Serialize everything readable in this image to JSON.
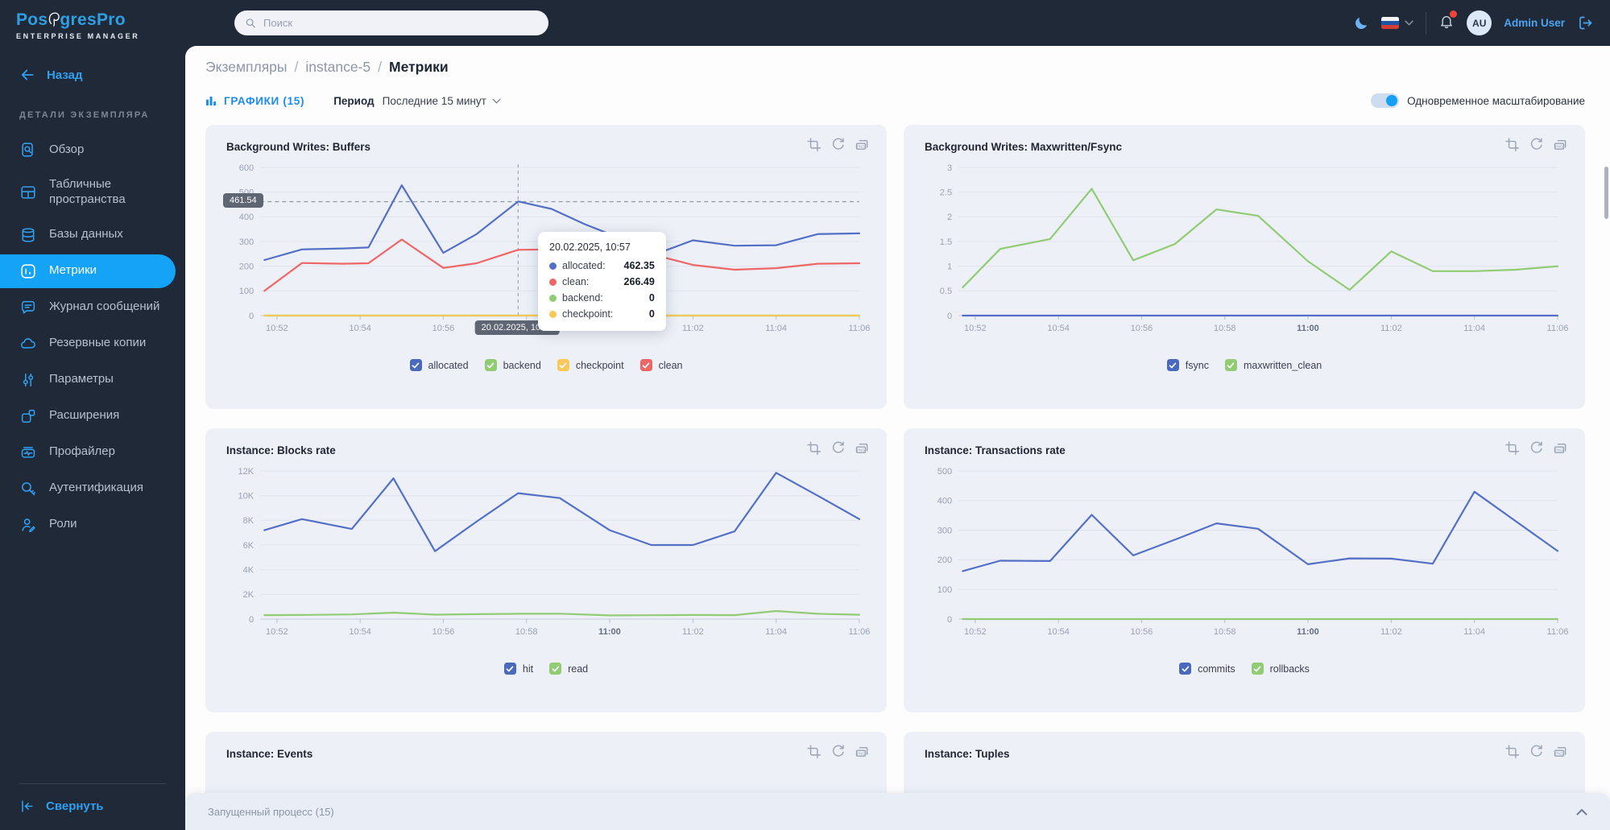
{
  "colors": {
    "sidebar_bg": "#202938",
    "accent_blue": "#14a3f6",
    "link_blue": "#2f9ff0",
    "series_blue": "#5470c6",
    "series_green": "#91cc75",
    "series_yellow": "#fac858",
    "series_red": "#ee6666",
    "checkbox_blue": "#4a69bd",
    "card_bg": "#edf0f7",
    "badge_bg": "#5f6673",
    "notification_red": "#f1443a"
  },
  "header": {
    "logo_text_pre": "Pos",
    "logo_text_post": "gresPro",
    "logo_subtitle": "ENTERPRISE MANAGER",
    "search_placeholder": "Поиск",
    "user_initials": "AU",
    "user_name": "Admin User"
  },
  "sidebar": {
    "back_label": "Назад",
    "section_label": "ДЕТАЛИ ЭКЗЕМПЛЯРА",
    "items": [
      {
        "id": "overview",
        "label": "Обзор",
        "icon": "doc-magnifier-icon",
        "active": false
      },
      {
        "id": "tablespaces",
        "label": "Табличные пространства",
        "icon": "table-grid-icon",
        "active": false
      },
      {
        "id": "databases",
        "label": "Базы данных",
        "icon": "database-icon",
        "active": false
      },
      {
        "id": "metrics",
        "label": "Метрики",
        "icon": "chart-square-icon",
        "active": true
      },
      {
        "id": "message-log",
        "label": "Журнал сообщений",
        "icon": "speech-bubble-icon",
        "active": false
      },
      {
        "id": "backups",
        "label": "Резервные копии",
        "icon": "cloud-icon",
        "active": false
      },
      {
        "id": "parameters",
        "label": "Параметры",
        "icon": "sliders-icon",
        "active": false
      },
      {
        "id": "extensions",
        "label": "Расширения",
        "icon": "puzzle-squares-icon",
        "active": false
      },
      {
        "id": "profiler",
        "label": "Профайлер",
        "icon": "waveform-icon",
        "active": false
      },
      {
        "id": "authentication",
        "label": "Аутентификация",
        "icon": "key-icon",
        "active": false
      },
      {
        "id": "roles",
        "label": "Роли",
        "icon": "user-pen-icon",
        "active": false
      }
    ],
    "collapse_label": "Свернуть"
  },
  "breadcrumb": {
    "parts": [
      "Экземпляры",
      "instance-5",
      "Метрики"
    ],
    "separator": "/"
  },
  "toolbar": {
    "tab_label": "ГРАФИКИ (15)",
    "period_label": "Период",
    "period_value": "Последние 15 минут",
    "sync_toggle_label": "Одновременное масштабирование",
    "sync_enabled": true
  },
  "card_actions": {
    "png_label": "PNG"
  },
  "statusbar": {
    "label": "Запущенный процесс (15)"
  },
  "chart_data": [
    {
      "type": "line",
      "title": "Background Writes: Buffers",
      "x_axis_note": "time of day, 1-minute samples",
      "x": [
        51.7,
        52.6,
        53.6,
        54.2,
        55,
        56,
        56.8,
        57.8,
        58.6,
        59.4,
        60.3,
        61.2,
        62,
        63,
        64,
        65,
        66
      ],
      "xticks": [
        {
          "t": 52,
          "label": "10:52"
        },
        {
          "t": 54,
          "label": "10:54"
        },
        {
          "t": 56,
          "label": "10:56"
        },
        {
          "t": 58,
          "label": "10:58"
        },
        {
          "t": 60,
          "label": "11:00",
          "bold": true
        },
        {
          "t": 62,
          "label": "11:02"
        },
        {
          "t": 64,
          "label": "11:04"
        },
        {
          "t": 66,
          "label": "11:06"
        }
      ],
      "ylim": [
        0,
        600
      ],
      "yticks": [
        {
          "v": 0,
          "label": "0"
        },
        {
          "v": 100,
          "label": "100"
        },
        {
          "v": 200,
          "label": "200"
        },
        {
          "v": 300,
          "label": "300"
        },
        {
          "v": 400,
          "label": "400"
        },
        {
          "v": 500,
          "label": "500"
        },
        {
          "v": 600,
          "label": "600"
        }
      ],
      "series": [
        {
          "name": "backend",
          "color": "#91cc75",
          "values": [
            0,
            0,
            0,
            0,
            0,
            0,
            0,
            0,
            0,
            0,
            0,
            0,
            0,
            0,
            0,
            0,
            0
          ]
        },
        {
          "name": "checkpoint",
          "color": "#fac858",
          "values": [
            0,
            0,
            0,
            0,
            0,
            0,
            0,
            0,
            0,
            0,
            0,
            0,
            0,
            0,
            0,
            0,
            0
          ]
        },
        {
          "name": "clean",
          "color": "#ee6666",
          "values": [
            100,
            213,
            210,
            212,
            308,
            193,
            212,
            266.49,
            268,
            265,
            230,
            240,
            205,
            186,
            192,
            210,
            212
          ]
        },
        {
          "name": "allocated",
          "color": "#5470c6",
          "values": [
            225,
            268,
            272,
            276,
            528,
            254,
            330,
            462.35,
            432,
            370,
            310,
            255,
            305,
            283,
            285,
            330,
            333
          ]
        }
      ],
      "legend": [
        {
          "label": "allocated",
          "color": "#4a69bd"
        },
        {
          "label": "backend",
          "color": "#91cc75"
        },
        {
          "label": "checkpoint",
          "color": "#fac858"
        },
        {
          "label": "clean",
          "color": "#ee6666"
        }
      ],
      "crosshair": {
        "hline_value": 461.54,
        "hline_label": "461.54",
        "vline_t": 57.8,
        "vline_label": "20.02.2025, 10:57"
      },
      "tooltip": {
        "title": "20.02.2025, 10:57",
        "rows": [
          {
            "label": "allocated",
            "value": "462.35",
            "color": "#5470c6"
          },
          {
            "label": "clean",
            "value": "266.49",
            "color": "#ee6666"
          },
          {
            "label": "backend",
            "value": "0",
            "color": "#91cc75"
          },
          {
            "label": "checkpoint",
            "value": "0",
            "color": "#fac858"
          }
        ]
      }
    },
    {
      "type": "line",
      "title": "Background Writes: Maxwritten/Fsync",
      "x": [
        51.7,
        52.6,
        53.8,
        54.8,
        55.8,
        56.8,
        57.8,
        58.8,
        60,
        61,
        62,
        63,
        64,
        65,
        66
      ],
      "xticks": [
        {
          "t": 52,
          "label": "10:52"
        },
        {
          "t": 54,
          "label": "10:54"
        },
        {
          "t": 56,
          "label": "10:56"
        },
        {
          "t": 58,
          "label": "10:58"
        },
        {
          "t": 60,
          "label": "11:00",
          "bold": true
        },
        {
          "t": 62,
          "label": "11:02"
        },
        {
          "t": 64,
          "label": "11:04"
        },
        {
          "t": 66,
          "label": "11:06"
        }
      ],
      "ylim": [
        0,
        3
      ],
      "yticks": [
        {
          "v": 0,
          "label": "0"
        },
        {
          "v": 0.5,
          "label": "0.5"
        },
        {
          "v": 1,
          "label": "1"
        },
        {
          "v": 1.5,
          "label": "1.5"
        },
        {
          "v": 2,
          "label": "2"
        },
        {
          "v": 2.5,
          "label": "2.5"
        },
        {
          "v": 3,
          "label": "3"
        }
      ],
      "series": [
        {
          "name": "maxwritten_clean",
          "color": "#91cc75",
          "values": [
            0.57,
            1.35,
            1.55,
            2.57,
            1.12,
            1.45,
            2.15,
            2.02,
            1.1,
            0.52,
            1.3,
            0.9,
            0.9,
            0.93,
            1.0
          ]
        },
        {
          "name": "fsync",
          "color": "#5470c6",
          "values": [
            0,
            0,
            0,
            0,
            0,
            0,
            0,
            0,
            0,
            0,
            0,
            0,
            0,
            0,
            0
          ]
        }
      ],
      "legend": [
        {
          "label": "fsync",
          "color": "#4a69bd"
        },
        {
          "label": "maxwritten_clean",
          "color": "#91cc75"
        }
      ]
    },
    {
      "type": "line",
      "title": "Instance: Blocks rate",
      "x": [
        51.7,
        52.6,
        53.8,
        54.8,
        55.8,
        56.8,
        57.8,
        58.8,
        60,
        61,
        62,
        63,
        64,
        65,
        66
      ],
      "xticks": [
        {
          "t": 52,
          "label": "10:52"
        },
        {
          "t": 54,
          "label": "10:54"
        },
        {
          "t": 56,
          "label": "10:56"
        },
        {
          "t": 58,
          "label": "10:58"
        },
        {
          "t": 60,
          "label": "11:00",
          "bold": true
        },
        {
          "t": 62,
          "label": "11:02"
        },
        {
          "t": 64,
          "label": "11:04"
        },
        {
          "t": 66,
          "label": "11:06"
        }
      ],
      "ylim": [
        0,
        12000
      ],
      "yticks": [
        {
          "v": 0,
          "label": "0"
        },
        {
          "v": 2000,
          "label": "2K"
        },
        {
          "v": 4000,
          "label": "4K"
        },
        {
          "v": 6000,
          "label": "6K"
        },
        {
          "v": 8000,
          "label": "8K"
        },
        {
          "v": 10000,
          "label": "10K"
        },
        {
          "v": 12000,
          "label": "12K"
        }
      ],
      "series": [
        {
          "name": "hit",
          "color": "#5470c6",
          "values": [
            7200,
            8100,
            7300,
            11400,
            5500,
            7900,
            10200,
            9800,
            7200,
            6000,
            6000,
            7100,
            11850,
            10000,
            8100
          ]
        },
        {
          "name": "read",
          "color": "#91cc75",
          "values": [
            320,
            330,
            380,
            520,
            360,
            400,
            430,
            440,
            300,
            310,
            330,
            320,
            650,
            430,
            350
          ]
        }
      ],
      "legend": [
        {
          "label": "hit",
          "color": "#4a69bd"
        },
        {
          "label": "read",
          "color": "#91cc75"
        }
      ]
    },
    {
      "type": "line",
      "title": "Instance: Transactions rate",
      "x": [
        51.7,
        52.6,
        53.8,
        54.8,
        55.8,
        56.8,
        57.8,
        58.8,
        60,
        61,
        62,
        63,
        64,
        65,
        66
      ],
      "xticks": [
        {
          "t": 52,
          "label": "10:52"
        },
        {
          "t": 54,
          "label": "10:54"
        },
        {
          "t": 56,
          "label": "10:56"
        },
        {
          "t": 58,
          "label": "10:58"
        },
        {
          "t": 60,
          "label": "11:00",
          "bold": true
        },
        {
          "t": 62,
          "label": "11:02"
        },
        {
          "t": 64,
          "label": "11:04"
        },
        {
          "t": 66,
          "label": "11:06"
        }
      ],
      "ylim": [
        0,
        500
      ],
      "yticks": [
        {
          "v": 0,
          "label": "0"
        },
        {
          "v": 100,
          "label": "100"
        },
        {
          "v": 200,
          "label": "200"
        },
        {
          "v": 300,
          "label": "300"
        },
        {
          "v": 400,
          "label": "400"
        },
        {
          "v": 500,
          "label": "500"
        }
      ],
      "series": [
        {
          "name": "commits",
          "color": "#5470c6",
          "values": [
            162,
            197,
            196,
            352,
            215,
            268,
            323,
            305,
            185,
            205,
            204,
            187,
            430,
            330,
            230
          ]
        },
        {
          "name": "rollbacks",
          "color": "#91cc75",
          "values": [
            0,
            0,
            0,
            0,
            0,
            0,
            0,
            0,
            0,
            0,
            0,
            0,
            0,
            0,
            0
          ]
        }
      ],
      "legend": [
        {
          "label": "commits",
          "color": "#4a69bd"
        },
        {
          "label": "rollbacks",
          "color": "#91cc75"
        }
      ]
    },
    {
      "type": "stub",
      "title": "Instance: Events"
    },
    {
      "type": "stub",
      "title": "Instance: Tuples"
    }
  ]
}
